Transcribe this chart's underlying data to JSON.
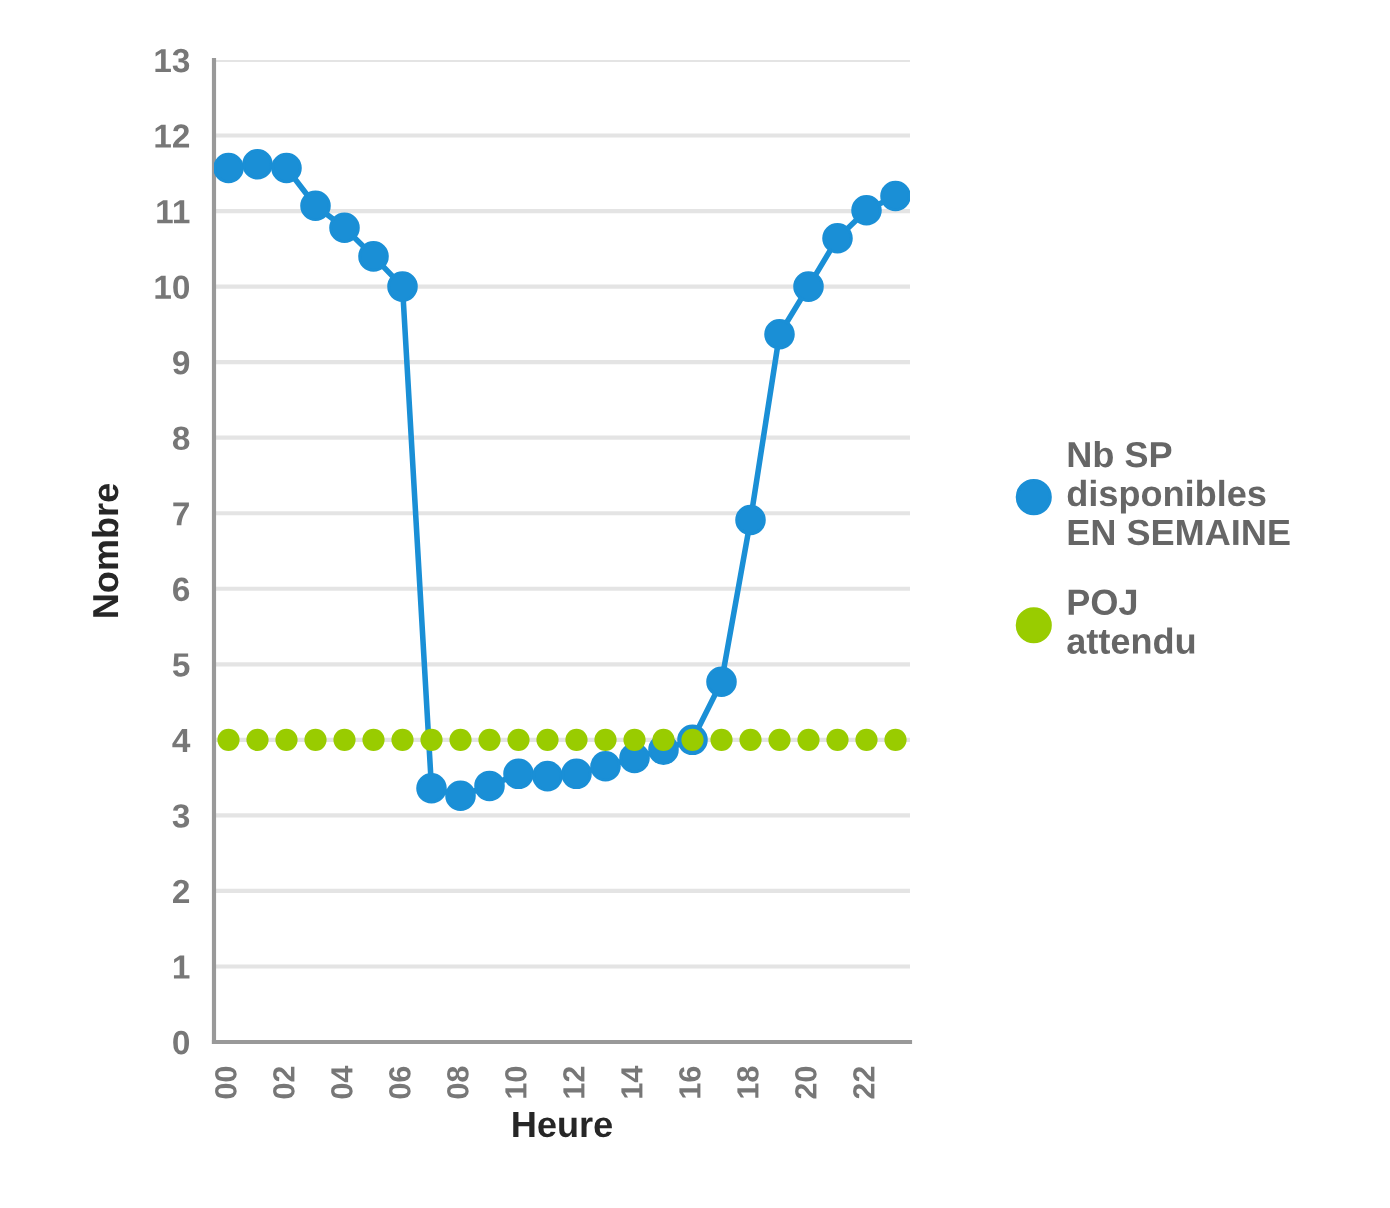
{
  "chart_data": {
    "type": "line",
    "xlabel": "Heure",
    "ylabel": "Nombre",
    "categories": [
      "00",
      null,
      "02",
      null,
      "04",
      null,
      "06",
      null,
      "08",
      null,
      "10",
      null,
      "12",
      null,
      "14",
      null,
      "16",
      null,
      "18",
      null,
      "20",
      null,
      "22",
      null
    ],
    "series": [
      {
        "name": "Nb SP disponibles EN SEMAINE",
        "color": "#1a8fd6",
        "values": [
          11.57,
          11.62,
          11.57,
          11.07,
          10.78,
          10.4,
          10.0,
          3.36,
          3.26,
          3.39,
          3.55,
          3.52,
          3.55,
          3.65,
          3.76,
          3.87,
          4.0,
          4.77,
          6.91,
          9.37,
          10.0,
          10.64,
          11.01,
          11.2
        ]
      },
      {
        "name": "POJ attendu",
        "type": "scatter",
        "color": "#99cc00",
        "values": [
          4,
          4,
          4,
          4,
          4,
          4,
          4,
          4,
          4,
          4,
          4,
          4,
          4,
          4,
          4,
          4,
          4,
          4,
          4,
          4,
          4,
          4,
          4,
          4
        ]
      }
    ],
    "ylim": [
      0,
      13
    ],
    "yticks": [
      0,
      1,
      2,
      3,
      4,
      5,
      6,
      7,
      8,
      9,
      10,
      11,
      12,
      13
    ],
    "grid": "y",
    "legend": "right",
    "marker": "circle"
  }
}
